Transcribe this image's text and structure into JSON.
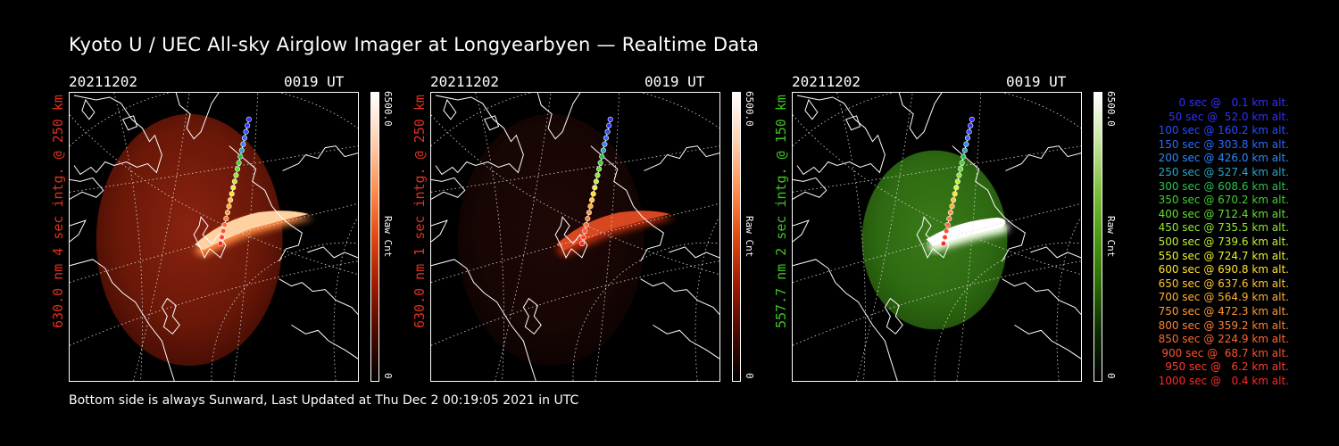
{
  "title": "Kyoto U / UEC All-sky Airglow Imager at Longyearbyen — Realtime Data",
  "footer": "Bottom side is always Sunward, Last Updated at Thu Dec  2 00:19:05 2021 in UTC",
  "panels": [
    {
      "date": "20211202",
      "time": "0019 UT",
      "ylabel": "630.0 nm 4 sec intg. @ 250 km",
      "label_color": "#e0301e",
      "cbar_max": "6500.0",
      "cbar_min": "0",
      "cbar_unit": "Raw Cnt",
      "cmap": "red",
      "brightness": "strong"
    },
    {
      "date": "20211202",
      "time": "0019 UT",
      "ylabel": "630.0 nm 1 sec intg. @ 250 km",
      "label_color": "#e0301e",
      "cbar_max": "6500.0",
      "cbar_min": "0",
      "cbar_unit": "Raw Cnt",
      "cmap": "red",
      "brightness": "weak"
    },
    {
      "date": "20211202",
      "time": "0019 UT",
      "ylabel": "557.7 nm 2 sec intg. @ 150 km",
      "label_color": "#3fc41f",
      "cbar_max": "6500.0",
      "cbar_min": "0",
      "cbar_unit": "Raw Cnt",
      "cmap": "green",
      "brightness": "strong"
    }
  ],
  "legend": [
    {
      "text": "0 sec @   0.1 km alt.",
      "color": "#3030ff"
    },
    {
      "text": "50 sec @  52.0 km alt.",
      "color": "#3030ff"
    },
    {
      "text": "100 sec @ 160.2 km alt.",
      "color": "#2a4cff"
    },
    {
      "text": "150 sec @ 303.8 km alt.",
      "color": "#2a6aff"
    },
    {
      "text": "200 sec @ 426.0 km alt.",
      "color": "#2a88ff"
    },
    {
      "text": "250 sec @ 527.4 km alt.",
      "color": "#2aa6c8"
    },
    {
      "text": "300 sec @ 608.6 km alt.",
      "color": "#2ac050"
    },
    {
      "text": "350 sec @ 670.2 km alt.",
      "color": "#40d030"
    },
    {
      "text": "400 sec @ 712.4 km alt.",
      "color": "#60e030"
    },
    {
      "text": "450 sec @ 735.5 km alt.",
      "color": "#90e830"
    },
    {
      "text": "500 sec @ 739.6 km alt.",
      "color": "#c0f030"
    },
    {
      "text": "550 sec @ 724.7 km alt.",
      "color": "#e8f030"
    },
    {
      "text": "600 sec @ 690.8 km alt.",
      "color": "#ffe030"
    },
    {
      "text": "650 sec @ 637.6 km alt.",
      "color": "#ffc830"
    },
    {
      "text": "700 sec @ 564.9 km alt.",
      "color": "#ffb030"
    },
    {
      "text": "750 sec @ 472.3 km alt.",
      "color": "#ff9830"
    },
    {
      "text": "800 sec @ 359.2 km alt.",
      "color": "#ff8030"
    },
    {
      "text": "850 sec @ 224.9 km alt.",
      "color": "#ff6830"
    },
    {
      "text": "900 sec @  68.7 km alt.",
      "color": "#ff5030"
    },
    {
      "text": "950 sec @   6.2 km alt.",
      "color": "#ff3c30"
    },
    {
      "text": "1000 sec @   0.4 km alt.",
      "color": "#ff2828"
    }
  ]
}
